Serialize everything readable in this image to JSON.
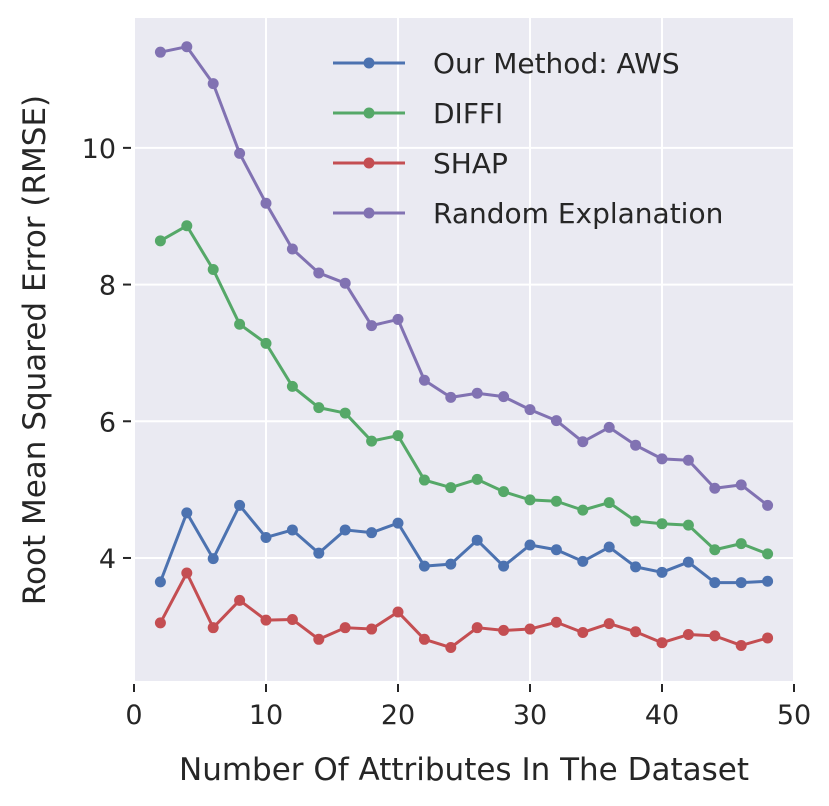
{
  "chart_data": {
    "type": "line",
    "title": "",
    "xlabel": "Number Of Attributes In The Dataset",
    "ylabel": "Root Mean Squared Error (RMSE)",
    "xlim": [
      0,
      50
    ],
    "ylim": [
      2.2,
      11.9
    ],
    "xticks": [
      0,
      10,
      20,
      30,
      40,
      50
    ],
    "yticks": [
      4,
      6,
      8,
      10
    ],
    "grid": true,
    "legend_position": "top-right",
    "x": [
      2,
      4,
      6,
      8,
      10,
      12,
      14,
      16,
      18,
      20,
      22,
      24,
      26,
      28,
      30,
      32,
      34,
      36,
      38,
      40,
      42,
      44,
      46,
      48
    ],
    "series": [
      {
        "name": "Our Method: AWS",
        "color": "#4c72b0",
        "values": [
          3.65,
          4.66,
          3.99,
          4.77,
          4.3,
          4.41,
          4.07,
          4.41,
          4.37,
          4.51,
          3.88,
          3.91,
          4.26,
          3.88,
          4.19,
          4.12,
          3.95,
          4.16,
          3.87,
          3.79,
          3.94,
          3.64,
          3.64,
          3.66
        ]
      },
      {
        "name": "DIFFI",
        "color": "#55a868",
        "values": [
          8.64,
          8.86,
          8.22,
          7.42,
          7.14,
          6.51,
          6.2,
          6.12,
          5.71,
          5.79,
          5.14,
          5.03,
          5.15,
          4.97,
          4.85,
          4.83,
          4.7,
          4.81,
          4.54,
          4.5,
          4.48,
          4.12,
          4.21,
          4.06
        ]
      },
      {
        "name": "SHAP",
        "color": "#c44e52",
        "values": [
          3.05,
          3.78,
          2.98,
          3.38,
          3.09,
          3.1,
          2.81,
          2.98,
          2.96,
          3.21,
          2.81,
          2.69,
          2.98,
          2.94,
          2.96,
          3.06,
          2.91,
          3.04,
          2.92,
          2.76,
          2.88,
          2.86,
          2.72,
          2.83
        ]
      },
      {
        "name": "Random Explanation",
        "color": "#8172b2",
        "values": [
          11.4,
          11.48,
          10.94,
          9.92,
          9.19,
          8.52,
          8.17,
          8.02,
          7.4,
          7.49,
          6.6,
          6.35,
          6.41,
          6.36,
          6.17,
          6.01,
          5.7,
          5.91,
          5.65,
          5.45,
          5.43,
          5.02,
          5.07,
          4.77
        ]
      }
    ]
  },
  "style": {
    "plot_background": "#eaeaf2",
    "grid_color": "#ffffff",
    "tick_color": "#262626"
  }
}
